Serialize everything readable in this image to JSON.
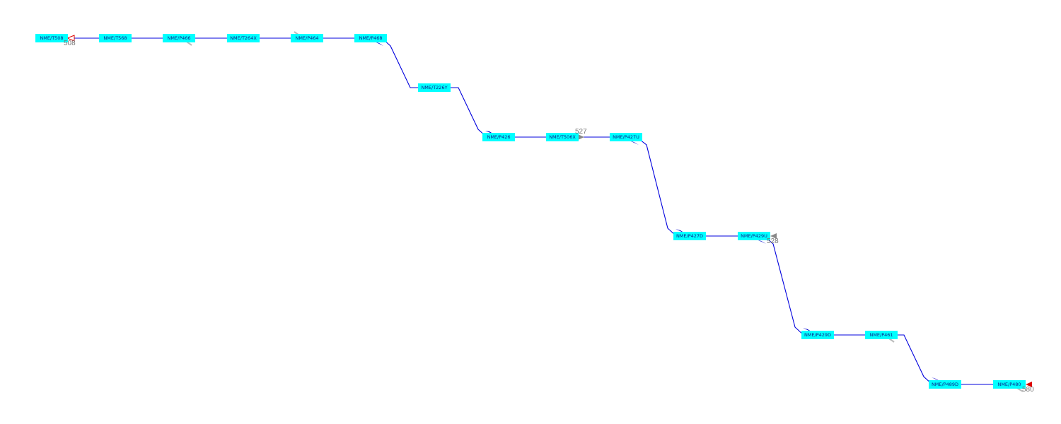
{
  "diagram": {
    "nodes": [
      {
        "id": "n1",
        "label": "NME/T508"
      },
      {
        "id": "n2",
        "label": "NME/T568"
      },
      {
        "id": "n3",
        "label": "NME/P466"
      },
      {
        "id": "n4",
        "label": "NME/T264X"
      },
      {
        "id": "n5",
        "label": "NME/P464"
      },
      {
        "id": "n6",
        "label": "NME/P468"
      },
      {
        "id": "n7",
        "label": "NME/T226Y"
      },
      {
        "id": "n8",
        "label": "NME/P426"
      },
      {
        "id": "n9",
        "label": "NME/T506X"
      },
      {
        "id": "n10",
        "label": "NME/P427U"
      },
      {
        "id": "n11",
        "label": "NME/P427D"
      },
      {
        "id": "n12",
        "label": "NME/P429U"
      },
      {
        "id": "n13",
        "label": "NME/P429D"
      },
      {
        "id": "n14",
        "label": "NME/P461"
      },
      {
        "id": "n15",
        "label": "NME/P489D"
      },
      {
        "id": "n16",
        "label": "NME/P480"
      }
    ],
    "markers": [
      {
        "id": "m508",
        "label": "508",
        "style": "red-open-triangle"
      },
      {
        "id": "m527",
        "label": "527",
        "style": "grey-filled-triangle"
      },
      {
        "id": "m528",
        "label": "528",
        "style": "grey-filled-triangle"
      },
      {
        "id": "m580",
        "label": "580",
        "style": "red-filled-triangle"
      }
    ],
    "colors": {
      "node_fill": "#00ffff",
      "node_text": "#0b1f8a",
      "route_line": "#0000dd",
      "marker_red": "#dd0000",
      "marker_grey": "#888888",
      "label_grey": "#777777"
    }
  }
}
